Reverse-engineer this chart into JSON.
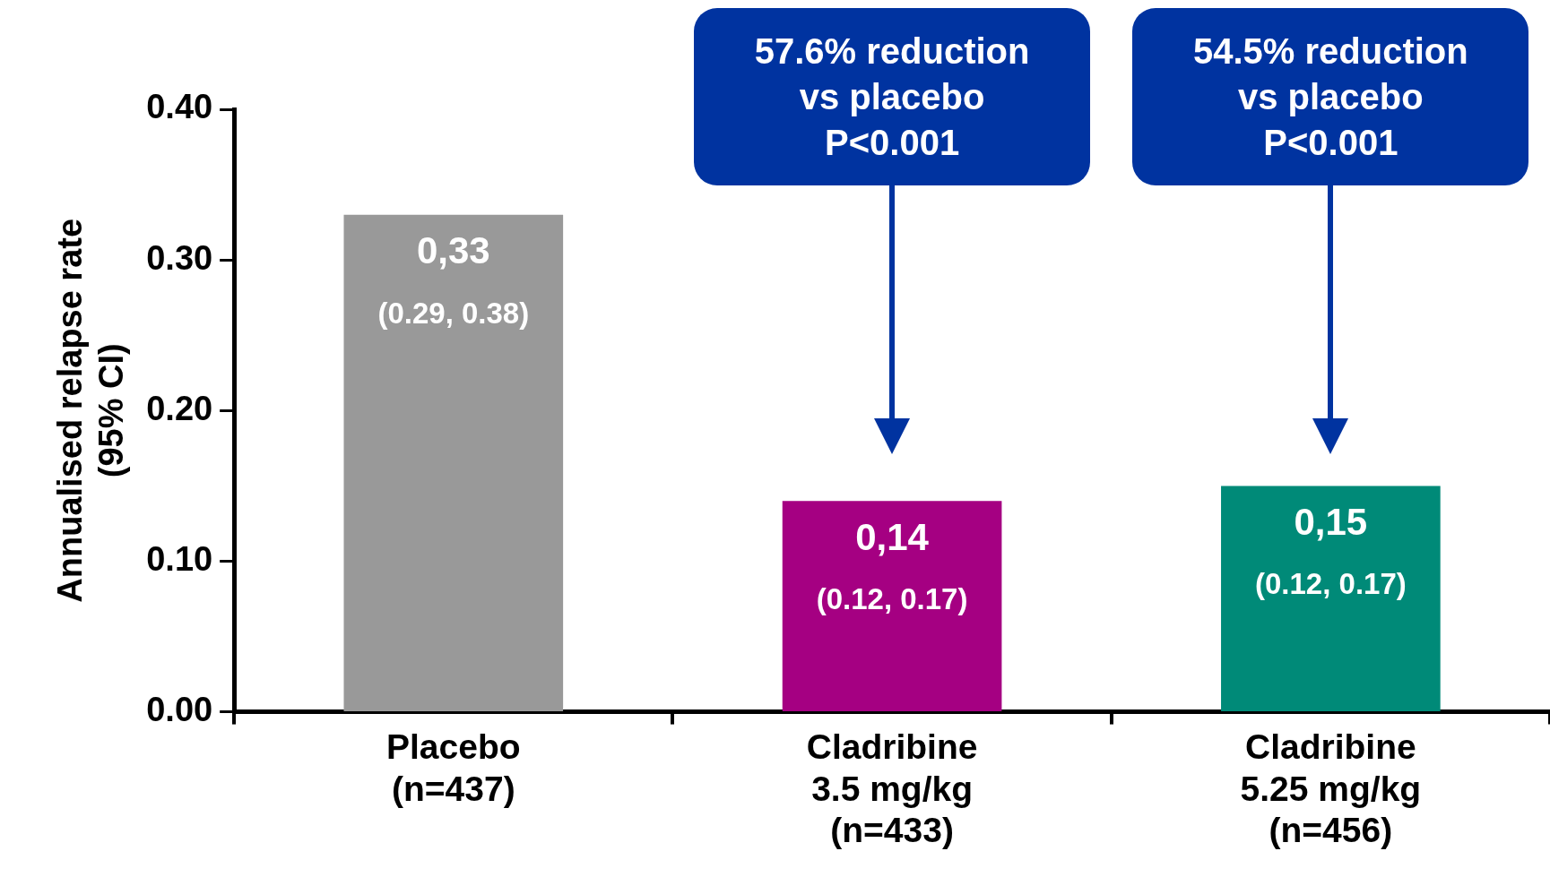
{
  "chart_data": {
    "type": "bar",
    "ylabel": "Annualised relapse rate\n(95% CI)",
    "categories": [
      "Placebo\n(n=437)",
      "Cladribine\n3.5 mg/kg\n(n=433)",
      "Cladribine\n5.25 mg/kg\n(n=456)"
    ],
    "values": [
      0.33,
      0.14,
      0.15
    ],
    "colors": [
      "#999999",
      "#a50082",
      "#008a78"
    ],
    "value_labels": [
      "0,33",
      "0,14",
      "0,15"
    ],
    "ylim": [
      0,
      0.4
    ],
    "yticks": [
      {
        "value": 0,
        "label": "0.00"
      },
      {
        "value": 0.1,
        "label": "0.10"
      },
      {
        "value": 0.2,
        "label": "0.20"
      },
      {
        "value": 0.3,
        "label": "0.30"
      },
      {
        "value": 0.4,
        "label": "0.40"
      }
    ],
    "grid": false,
    "legend": false,
    "annotations": [
      {
        "text": "(0.29, 0.38)",
        "x": "Placebo\n(n=437)",
        "y": 0.33
      },
      {
        "text": "(0.12, 0.17)",
        "x": "Cladribine\n3.5 mg/kg\n(n=433)",
        "y": 0.14
      },
      {
        "text": "(0.12, 0.17)",
        "x": "Cladribine\n5.25 mg/kg\n(n=456)",
        "y": 0.15
      },
      "57.6% reduction\nvs placebo\nP<0.001",
      "54.5% reduction\nvs placebo\nP<0.001"
    ]
  }
}
